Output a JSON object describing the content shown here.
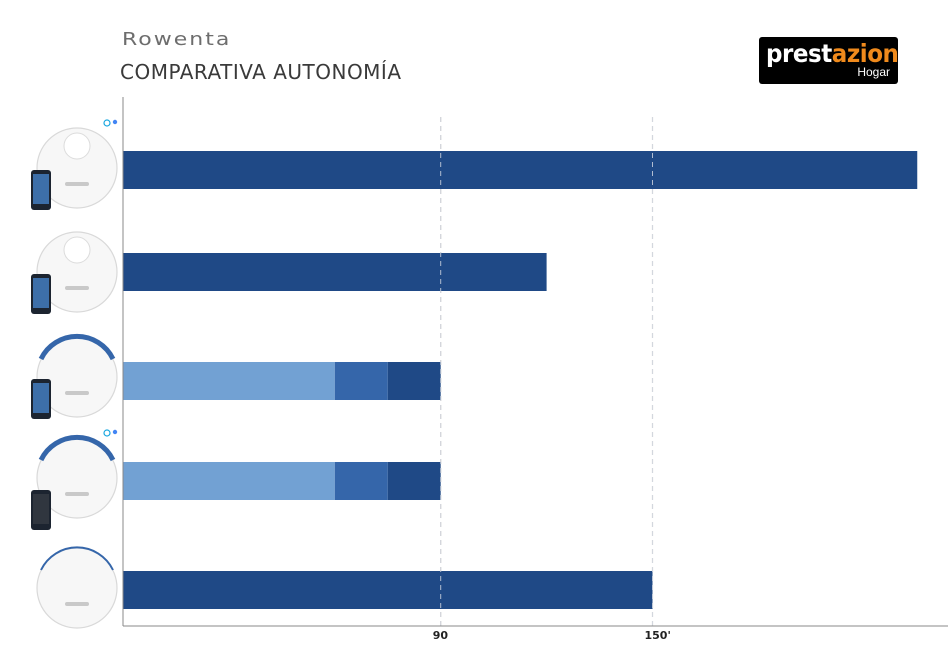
{
  "header": {
    "brand": "Rowenta",
    "title": "COMPARATIVA  AUTONOMÍA",
    "logo_main_a": "prest",
    "logo_main_b": "azion",
    "logo_sub": "Hogar"
  },
  "colors": {
    "primary": "#1f4986",
    "mid": "#3566aa",
    "light": "#72a1d3",
    "logo_accent": "#f08a1c",
    "axis": "#888888",
    "grid": "#c8c8c8"
  },
  "chart_data": {
    "type": "bar",
    "orientation": "horizontal",
    "title": "COMPARATIVA  AUTONOMÍA",
    "xlabel": "",
    "ylabel": "",
    "x_ticks": [
      {
        "value": 90,
        "label": "90"
      },
      {
        "value": 150,
        "label": "150'"
      }
    ],
    "xlim": [
      0,
      235
    ],
    "grid": "vertical dashed at ticks",
    "categories": [
      "robot-1",
      "robot-2",
      "robot-3",
      "robot-4",
      "robot-5"
    ],
    "bars": [
      {
        "segments": [
          {
            "value": 225,
            "color": "primary"
          }
        ]
      },
      {
        "segments": [
          {
            "value": 120,
            "color": "primary"
          }
        ]
      },
      {
        "segments": [
          {
            "value": 60,
            "color": "light"
          },
          {
            "value": 15,
            "color": "mid"
          },
          {
            "value": 15,
            "color": "primary"
          }
        ]
      },
      {
        "segments": [
          {
            "value": 60,
            "color": "light"
          },
          {
            "value": 15,
            "color": "mid"
          },
          {
            "value": 15,
            "color": "primary"
          }
        ]
      },
      {
        "segments": [
          {
            "value": 150,
            "color": "primary"
          }
        ]
      }
    ],
    "product_icons": [
      "robot-vacuum-with-phone",
      "robot-vacuum-with-phone",
      "robot-vacuum-with-phone",
      "robot-vacuum-with-phone",
      "robot-vacuum"
    ]
  }
}
